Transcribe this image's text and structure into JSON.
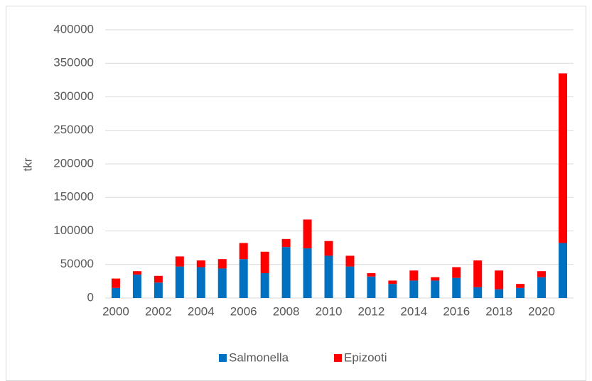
{
  "chart_data": {
    "type": "stacked_bar",
    "y_label": "tkr",
    "categories": [
      "2000",
      null,
      "2002",
      null,
      "2004",
      null,
      "2006",
      null,
      "2008",
      null,
      "2010",
      null,
      "2012",
      null,
      "2014",
      null,
      "2016",
      null,
      "2018",
      null,
      "2020",
      null
    ],
    "series": [
      {
        "name": "Salmonella",
        "color": "#0070c0",
        "values": [
          15000,
          35000,
          23000,
          47000,
          46000,
          44000,
          58000,
          37000,
          76000,
          74000,
          63000,
          47000,
          32000,
          21000,
          26000,
          26000,
          30000,
          16000,
          13000,
          15000,
          31000,
          82000
        ]
      },
      {
        "name": "Epizooti",
        "color": "#ff0000",
        "values": [
          14000,
          5000,
          10000,
          15000,
          10000,
          14000,
          24000,
          32000,
          12000,
          43000,
          22000,
          16000,
          5000,
          5000,
          15000,
          5000,
          16000,
          40000,
          28000,
          6000,
          9000,
          253000
        ]
      }
    ],
    "ylim": [
      0,
      400000
    ],
    "yticks": [
      0,
      50000,
      100000,
      150000,
      200000,
      250000,
      300000,
      350000,
      400000
    ],
    "grid": true,
    "legend": "bottom"
  }
}
